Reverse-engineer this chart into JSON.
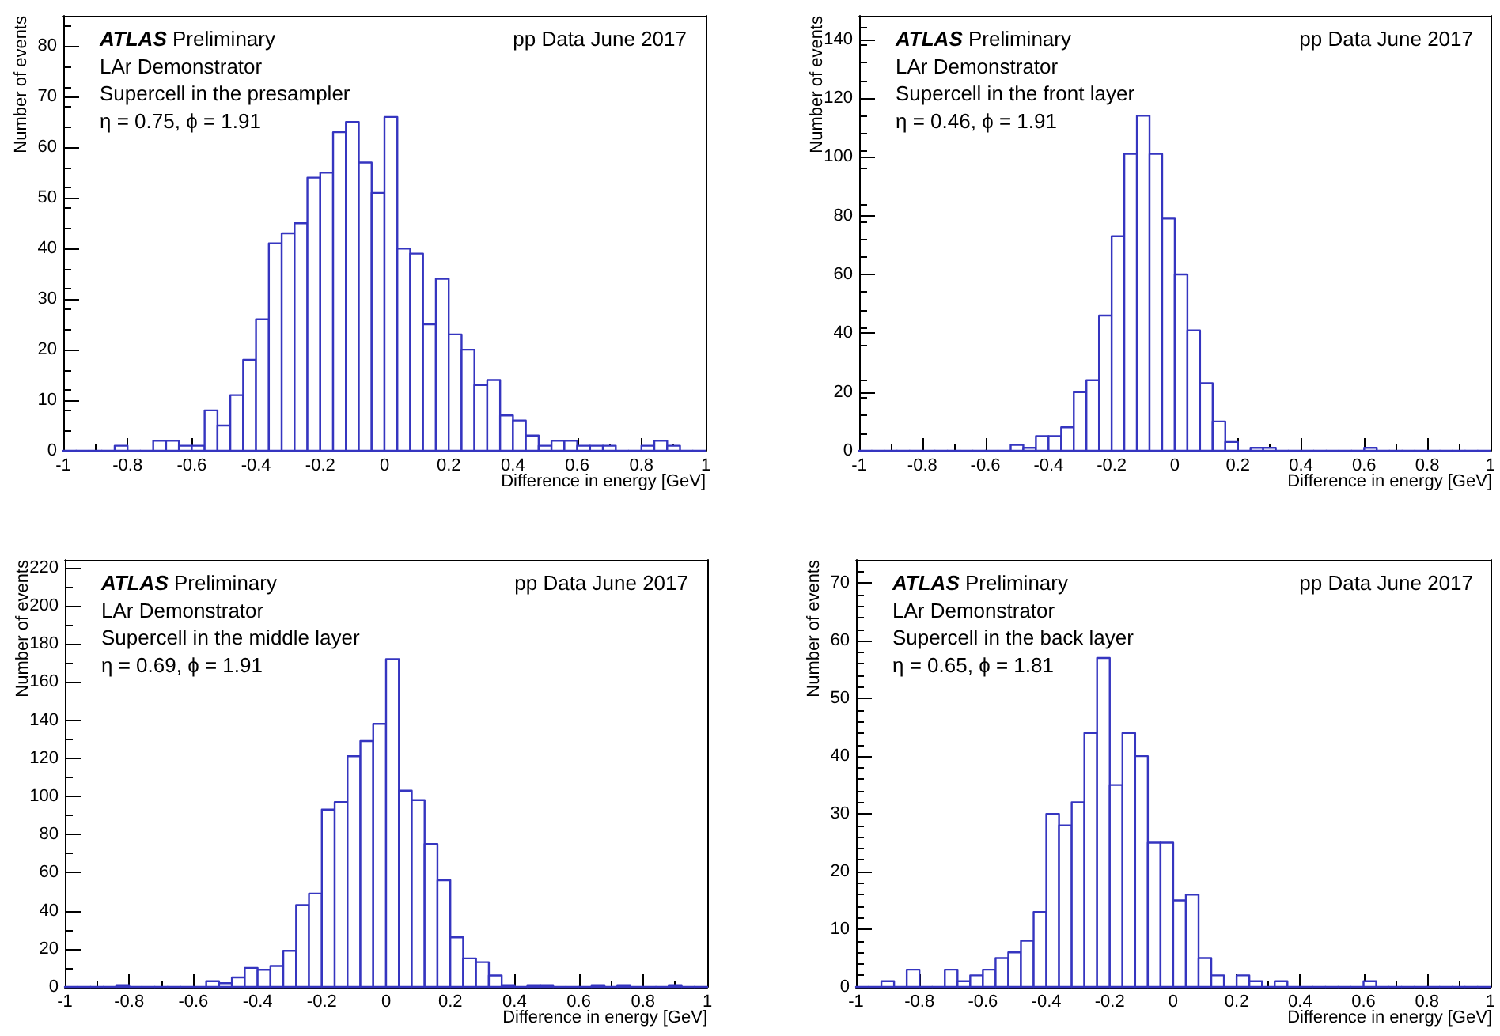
{
  "chart_data": [
    {
      "type": "histogram",
      "xlabel": "Difference in energy [GeV]",
      "ylabel": "Number of events",
      "color": "#3535c0",
      "annotations": [
        "ATLAS Preliminary",
        "pp Data June 2017",
        "LAr Demonstrator",
        "Supercell in the presampler",
        "η = 0.75, ϕ = 1.91"
      ],
      "bins": [
        -1,
        -0.96,
        -0.92,
        -0.88,
        -0.84,
        -0.8,
        -0.76,
        -0.72,
        -0.68,
        -0.64,
        -0.6,
        -0.56,
        -0.52,
        -0.48,
        -0.44,
        -0.4,
        -0.36,
        -0.32,
        -0.28,
        -0.24,
        -0.2,
        -0.16,
        -0.12,
        -0.08,
        -0.04,
        0,
        0.04,
        0.08,
        0.12,
        0.16,
        0.2,
        0.24,
        0.28,
        0.32,
        0.36,
        0.4,
        0.44,
        0.48,
        0.52,
        0.56,
        0.6,
        0.64,
        0.68,
        0.72,
        0.76,
        0.8,
        0.84,
        0.88,
        0.92,
        0.96,
        1
      ],
      "values": [
        0,
        0,
        0,
        0,
        1,
        0,
        0,
        2,
        2,
        1,
        1,
        8,
        5,
        11,
        18,
        26,
        41,
        43,
        45,
        54,
        55,
        63,
        65,
        57,
        51,
        66,
        40,
        39,
        25,
        34,
        23,
        20,
        13,
        14,
        7,
        6,
        3,
        1,
        2,
        2,
        1,
        1,
        1,
        0,
        0,
        1,
        2,
        1,
        0,
        0
      ],
      "xlim": [
        -1,
        1
      ],
      "xticks": [
        -1,
        -0.8,
        -0.6,
        -0.4,
        -0.2,
        0,
        0.2,
        0.4,
        0.6,
        0.8,
        1
      ],
      "ylim": [
        0,
        86
      ],
      "yticks": [
        0,
        10,
        20,
        30,
        40,
        50,
        60,
        70,
        80
      ]
    },
    {
      "type": "histogram",
      "xlabel": "Difference in energy [GeV]",
      "ylabel": "Number of events",
      "color": "#3535c0",
      "annotations": [
        "ATLAS Preliminary",
        "pp Data June 2017",
        "LAr Demonstrator",
        "Supercell in the front layer",
        "η = 0.46, ϕ = 1.91"
      ],
      "bins": [
        -1,
        -0.96,
        -0.92,
        -0.88,
        -0.84,
        -0.8,
        -0.76,
        -0.72,
        -0.68,
        -0.64,
        -0.6,
        -0.56,
        -0.52,
        -0.48,
        -0.44,
        -0.4,
        -0.36,
        -0.32,
        -0.28,
        -0.24,
        -0.2,
        -0.16,
        -0.12,
        -0.08,
        -0.04,
        0,
        0.04,
        0.08,
        0.12,
        0.16,
        0.2,
        0.24,
        0.28,
        0.32,
        0.36,
        0.4,
        0.44,
        0.48,
        0.52,
        0.56,
        0.6,
        0.64,
        0.68,
        0.72,
        0.76,
        0.8,
        0.84,
        0.88,
        0.92,
        0.96,
        1
      ],
      "values": [
        0,
        0,
        0,
        0,
        0,
        0,
        0,
        0,
        0,
        0,
        0,
        0,
        2,
        1,
        5,
        5,
        8,
        20,
        24,
        46,
        73,
        101,
        114,
        101,
        79,
        60,
        41,
        23,
        10,
        3,
        0,
        1,
        1,
        0,
        0,
        0,
        0,
        0,
        0,
        0,
        1,
        0,
        0,
        0,
        0,
        0,
        0,
        0,
        0,
        0
      ],
      "xlim": [
        -1,
        1
      ],
      "xticks": [
        -1,
        -0.8,
        -0.6,
        -0.4,
        -0.2,
        0,
        0.2,
        0.4,
        0.6,
        0.8,
        1
      ],
      "ylim": [
        0,
        148
      ],
      "yticks": [
        0,
        20,
        40,
        60,
        80,
        100,
        120,
        140
      ]
    },
    {
      "type": "histogram",
      "xlabel": "Difference in energy [GeV]",
      "ylabel": "Number of events",
      "color": "#3535c0",
      "annotations": [
        "ATLAS Preliminary",
        "pp Data June 2017",
        "LAr Demonstrator",
        "Supercell in the middle layer",
        "η = 0.69, ϕ = 1.91"
      ],
      "bins": [
        -1,
        -0.96,
        -0.92,
        -0.88,
        -0.84,
        -0.8,
        -0.76,
        -0.72,
        -0.68,
        -0.64,
        -0.6,
        -0.56,
        -0.52,
        -0.48,
        -0.44,
        -0.4,
        -0.36,
        -0.32,
        -0.28,
        -0.24,
        -0.2,
        -0.16,
        -0.12,
        -0.08,
        -0.04,
        0,
        0.04,
        0.08,
        0.12,
        0.16,
        0.2,
        0.24,
        0.28,
        0.32,
        0.36,
        0.4,
        0.44,
        0.48,
        0.52,
        0.56,
        0.6,
        0.64,
        0.68,
        0.72,
        0.76,
        0.8,
        0.84,
        0.88,
        0.92,
        0.96,
        1
      ],
      "values": [
        0,
        0,
        0,
        0,
        1,
        0,
        0,
        0,
        0,
        0,
        0,
        3,
        2,
        5,
        10,
        9,
        11,
        19,
        43,
        49,
        93,
        97,
        121,
        129,
        138,
        172,
        103,
        98,
        75,
        56,
        26,
        15,
        13,
        6,
        1,
        0,
        1,
        1,
        0,
        0,
        0,
        1,
        0,
        1,
        0,
        0,
        0,
        1,
        0,
        0
      ],
      "xlim": [
        -1,
        1
      ],
      "xticks": [
        -1,
        -0.8,
        -0.6,
        -0.4,
        -0.2,
        0,
        0.2,
        0.4,
        0.6,
        0.8,
        1
      ],
      "ylim": [
        0,
        224
      ],
      "yticks": [
        0,
        20,
        40,
        60,
        80,
        100,
        120,
        140,
        160,
        180,
        200,
        220
      ]
    },
    {
      "type": "histogram",
      "xlabel": "Difference in energy [GeV]",
      "ylabel": "Number of events",
      "color": "#3535c0",
      "annotations": [
        "ATLAS Preliminary",
        "pp Data June 2017",
        "LAr Demonstrator",
        "Supercell in the back layer",
        "η = 0.65, ϕ = 1.81"
      ],
      "bins": [
        -1,
        -0.96,
        -0.92,
        -0.88,
        -0.84,
        -0.8,
        -0.76,
        -0.72,
        -0.68,
        -0.64,
        -0.6,
        -0.56,
        -0.52,
        -0.48,
        -0.44,
        -0.4,
        -0.36,
        -0.32,
        -0.28,
        -0.24,
        -0.2,
        -0.16,
        -0.12,
        -0.08,
        -0.04,
        0,
        0.04,
        0.08,
        0.12,
        0.16,
        0.2,
        0.24,
        0.28,
        0.32,
        0.36,
        0.4,
        0.44,
        0.48,
        0.52,
        0.56,
        0.6,
        0.64,
        0.68,
        0.72,
        0.76,
        0.8,
        0.84,
        0.88,
        0.92,
        0.96,
        1
      ],
      "values": [
        0,
        0,
        1,
        0,
        3,
        0,
        0,
        3,
        1,
        2,
        3,
        5,
        6,
        8,
        13,
        30,
        28,
        32,
        44,
        57,
        35,
        44,
        40,
        25,
        25,
        15,
        16,
        5,
        2,
        0,
        2,
        1,
        0,
        1,
        0,
        0,
        0,
        0,
        0,
        0,
        1,
        0,
        0,
        0,
        0,
        0,
        0,
        0,
        0,
        0
      ],
      "xlim": [
        -1,
        1
      ],
      "xticks": [
        -1,
        -0.8,
        -0.6,
        -0.4,
        -0.2,
        0,
        0.2,
        0.4,
        0.6,
        0.8,
        1
      ],
      "ylim": [
        0,
        74
      ],
      "yticks": [
        0,
        10,
        20,
        30,
        40,
        50,
        60,
        70
      ]
    }
  ]
}
